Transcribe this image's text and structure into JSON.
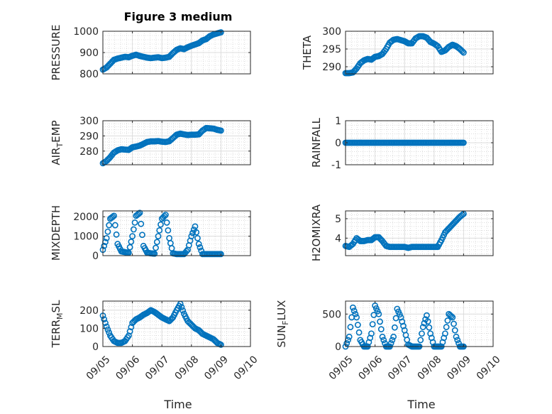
{
  "figure": {
    "title": "Figure 3 medium",
    "xlabel": "Time"
  },
  "chart_data": [
    {
      "type": "scatter",
      "ylabel": "PRESSURE",
      "ylim": [
        800,
        1000
      ],
      "yticks": [
        800,
        900,
        1000
      ],
      "yticklabels": [
        "800",
        "900",
        "1000"
      ],
      "xlim": [
        0,
        5
      ],
      "xticks": [
        0,
        1,
        2,
        3,
        4,
        5
      ],
      "xticklabels": [
        "09/05",
        "09/06",
        "09/07",
        "09/08",
        "09/09",
        "09/10"
      ],
      "show_xticklabels": false,
      "grid": true,
      "color": "#0072BD",
      "x": [
        0.0,
        0.125,
        0.25,
        0.375,
        0.5,
        0.625,
        0.75,
        0.875,
        1.0,
        1.125,
        1.25,
        1.375,
        1.5,
        1.625,
        1.75,
        1.875,
        2.0,
        2.125,
        2.25,
        2.375,
        2.5,
        2.625,
        2.75,
        2.875,
        3.0,
        3.125,
        3.25,
        3.375,
        3.5,
        3.625,
        3.75,
        3.875,
        4.0
      ],
      "y": [
        820,
        830,
        848,
        866,
        872,
        876,
        880,
        878,
        885,
        890,
        884,
        880,
        876,
        874,
        876,
        878,
        874,
        876,
        880,
        898,
        913,
        920,
        916,
        925,
        932,
        938,
        944,
        957,
        963,
        977,
        985,
        990,
        995
      ]
    },
    {
      "type": "scatter",
      "ylabel": "THETA",
      "ylim": [
        288,
        300
      ],
      "yticks": [
        290,
        295,
        300
      ],
      "yticklabels": [
        "290",
        "295",
        "300"
      ],
      "xlim": [
        0,
        5
      ],
      "xticks": [
        0,
        1,
        2,
        3,
        4,
        5
      ],
      "xticklabels": [
        "09/05",
        "09/06",
        "09/07",
        "09/08",
        "09/09",
        "09/10"
      ],
      "show_xticklabels": false,
      "grid": true,
      "color": "#0072BD",
      "x": [
        0.0,
        0.125,
        0.25,
        0.375,
        0.5,
        0.625,
        0.75,
        0.875,
        1.0,
        1.125,
        1.25,
        1.375,
        1.5,
        1.625,
        1.75,
        1.875,
        2.0,
        2.125,
        2.25,
        2.375,
        2.5,
        2.625,
        2.75,
        2.875,
        3.0,
        3.125,
        3.25,
        3.375,
        3.5,
        3.625,
        3.75,
        3.875,
        4.0
      ],
      "y": [
        288.2,
        288.2,
        288.4,
        289.5,
        291.0,
        291.8,
        292.2,
        292.0,
        292.8,
        293.0,
        293.6,
        295.0,
        296.8,
        297.6,
        297.8,
        297.5,
        297.2,
        296.6,
        296.6,
        298.0,
        298.6,
        298.6,
        298.2,
        297.0,
        296.5,
        295.8,
        294.2,
        294.6,
        295.6,
        296.2,
        295.8,
        295.0,
        294.0
      ]
    },
    {
      "type": "scatter",
      "ylabel": "AIR_TEMP",
      "ylim": [
        271,
        300
      ],
      "yticks": [
        280,
        290,
        300
      ],
      "yticklabels": [
        "280",
        "290",
        "300"
      ],
      "xlim": [
        0,
        5
      ],
      "xticks": [
        0,
        1,
        2,
        3,
        4,
        5
      ],
      "xticklabels": [
        "09/05",
        "09/06",
        "09/07",
        "09/08",
        "09/09",
        "09/10"
      ],
      "show_xticklabels": false,
      "grid": true,
      "color": "#0072BD",
      "x": [
        0.0,
        0.125,
        0.25,
        0.375,
        0.5,
        0.625,
        0.75,
        0.875,
        1.0,
        1.125,
        1.25,
        1.375,
        1.5,
        1.625,
        1.75,
        1.875,
        2.0,
        2.125,
        2.25,
        2.375,
        2.5,
        2.625,
        2.75,
        2.875,
        3.0,
        3.125,
        3.25,
        3.375,
        3.5,
        3.625,
        3.75,
        3.875,
        4.0
      ],
      "y": [
        272.0,
        273.5,
        276.0,
        279.0,
        280.5,
        281.2,
        281.0,
        280.8,
        282.5,
        283.0,
        283.6,
        284.8,
        286.0,
        286.4,
        286.4,
        286.6,
        286.2,
        286.0,
        286.5,
        288.6,
        290.8,
        291.5,
        291.0,
        290.6,
        290.8,
        290.8,
        291.0,
        293.5,
        295.2,
        295.0,
        294.8,
        294.0,
        293.5
      ]
    },
    {
      "type": "scatter",
      "ylabel": "RAINFALL",
      "ylim": [
        -1,
        1
      ],
      "yticks": [
        -1,
        0,
        1
      ],
      "yticklabels": [
        "-1",
        "0",
        "1"
      ],
      "xlim": [
        0,
        5
      ],
      "xticks": [
        0,
        1,
        2,
        3,
        4,
        5
      ],
      "xticklabels": [
        "09/05",
        "09/06",
        "09/07",
        "09/08",
        "09/09",
        "09/10"
      ],
      "show_xticklabels": false,
      "grid": true,
      "color": "#0072BD",
      "x": [
        0.0,
        0.125,
        0.25,
        0.375,
        0.5,
        0.625,
        0.75,
        0.875,
        1.0,
        1.125,
        1.25,
        1.375,
        1.5,
        1.625,
        1.75,
        1.875,
        2.0,
        2.125,
        2.25,
        2.375,
        2.5,
        2.625,
        2.75,
        2.875,
        3.0,
        3.125,
        3.25,
        3.375,
        3.5,
        3.625,
        3.75,
        3.875,
        4.0
      ],
      "y": [
        0,
        0,
        0,
        0,
        0,
        0,
        0,
        0,
        0,
        0,
        0,
        0,
        0,
        0,
        0,
        0,
        0,
        0,
        0,
        0,
        0,
        0,
        0,
        0,
        0,
        0,
        0,
        0,
        0,
        0,
        0,
        0,
        0
      ]
    },
    {
      "type": "scatter",
      "ylabel": "MIXDEPTH",
      "ylim": [
        0,
        2300
      ],
      "yticks": [
        0,
        1000,
        2000
      ],
      "yticklabels": [
        "0",
        "1000",
        "2000"
      ],
      "xlim": [
        0,
        5
      ],
      "xticks": [
        0,
        1,
        2,
        3,
        4,
        5
      ],
      "xticklabels": [
        "09/05",
        "09/06",
        "09/07",
        "09/08",
        "09/09",
        "09/10"
      ],
      "show_xticklabels": false,
      "grid": true,
      "color": "#0072BD",
      "x": [
        0.0,
        0.125,
        0.25,
        0.375,
        0.5,
        0.625,
        0.75,
        0.875,
        1.0,
        1.125,
        1.25,
        1.375,
        1.5,
        1.625,
        1.75,
        1.875,
        2.0,
        2.125,
        2.25,
        2.375,
        2.5,
        2.625,
        2.75,
        2.875,
        3.0,
        3.125,
        3.25,
        3.375,
        3.5,
        3.625,
        3.75,
        3.875,
        4.0
      ],
      "y": [
        300,
        900,
        1900,
        2050,
        600,
        220,
        180,
        150,
        1000,
        2050,
        2200,
        500,
        150,
        120,
        100,
        1000,
        1900,
        2100,
        900,
        120,
        80,
        80,
        80,
        300,
        1000,
        1500,
        600,
        80,
        80,
        80,
        80,
        80,
        80
      ]
    },
    {
      "type": "scatter",
      "ylabel": "H2OMIXRA",
      "ylim": [
        3.1,
        5.4
      ],
      "yticks": [
        4,
        5
      ],
      "yticklabels": [
        "4",
        "5"
      ],
      "xlim": [
        0,
        5
      ],
      "xticks": [
        0,
        1,
        2,
        3,
        4,
        5
      ],
      "xticklabels": [
        "09/05",
        "09/06",
        "09/07",
        "09/08",
        "09/09",
        "09/10"
      ],
      "show_xticklabels": false,
      "grid": true,
      "color": "#0072BD",
      "x": [
        0.0,
        0.125,
        0.25,
        0.375,
        0.5,
        0.625,
        0.75,
        0.875,
        1.0,
        1.125,
        1.25,
        1.375,
        1.5,
        1.625,
        1.75,
        1.875,
        2.0,
        2.125,
        2.25,
        2.375,
        2.5,
        2.625,
        2.75,
        2.875,
        3.0,
        3.125,
        3.25,
        3.375,
        3.5,
        3.625,
        3.75,
        3.875,
        4.0
      ],
      "y": [
        3.6,
        3.55,
        3.7,
        4.0,
        3.85,
        3.85,
        3.9,
        3.9,
        4.05,
        4.05,
        3.85,
        3.6,
        3.55,
        3.55,
        3.55,
        3.55,
        3.55,
        3.5,
        3.55,
        3.55,
        3.55,
        3.55,
        3.55,
        3.55,
        3.55,
        3.55,
        3.9,
        4.3,
        4.5,
        4.7,
        4.9,
        5.1,
        5.25
      ]
    },
    {
      "type": "scatter",
      "ylabel": "TERR_MSL",
      "ylim": [
        0,
        250
      ],
      "yticks": [
        0,
        100,
        200
      ],
      "yticklabels": [
        "0",
        "100",
        "200"
      ],
      "xlim": [
        0,
        5
      ],
      "xticks": [
        0,
        1,
        2,
        3,
        4,
        5
      ],
      "xticklabels": [
        "09/05",
        "09/06",
        "09/07",
        "09/08",
        "09/09",
        "09/10"
      ],
      "show_xticklabels": false,
      "grid": true,
      "color": "#0072BD",
      "x": [
        0.0,
        0.125,
        0.25,
        0.375,
        0.5,
        0.625,
        0.75,
        0.875,
        1.0,
        1.125,
        1.25,
        1.375,
        1.5,
        1.625,
        1.75,
        1.875,
        2.0,
        2.125,
        2.25,
        2.375,
        2.5,
        2.625,
        2.75,
        2.875,
        3.0,
        3.125,
        3.25,
        3.375,
        3.5,
        3.625,
        3.75,
        3.875,
        4.0
      ],
      "y": [
        170,
        110,
        60,
        30,
        20,
        20,
        30,
        60,
        130,
        150,
        160,
        175,
        185,
        200,
        190,
        175,
        160,
        150,
        140,
        160,
        200,
        235,
        180,
        140,
        120,
        100,
        90,
        70,
        60,
        50,
        40,
        20,
        10
      ]
    },
    {
      "type": "scatter",
      "ylabel": "SUN_FLUX",
      "ylim": [
        0,
        700
      ],
      "yticks": [
        0,
        500
      ],
      "yticklabels": [
        "0",
        "500"
      ],
      "xlim": [
        0,
        5
      ],
      "xticks": [
        0,
        1,
        2,
        3,
        4,
        5
      ],
      "xticklabels": [
        "09/05",
        "09/06",
        "09/07",
        "09/08",
        "09/09",
        "09/10"
      ],
      "show_xticklabels": true,
      "grid": true,
      "color": "#0072BD",
      "x": [
        0.0,
        0.125,
        0.25,
        0.375,
        0.5,
        0.625,
        0.75,
        0.875,
        1.0,
        1.125,
        1.25,
        1.375,
        1.5,
        1.625,
        1.75,
        1.875,
        2.0,
        2.125,
        2.25,
        2.375,
        2.5,
        2.625,
        2.75,
        2.875,
        3.0,
        3.125,
        3.25,
        3.375,
        3.5,
        3.625,
        3.75,
        3.875,
        4.0
      ],
      "y": [
        0,
        150,
        600,
        450,
        100,
        0,
        0,
        200,
        630,
        500,
        150,
        0,
        0,
        150,
        580,
        450,
        250,
        30,
        0,
        0,
        0,
        300,
        480,
        200,
        0,
        0,
        0,
        200,
        500,
        450,
        150,
        0,
        0
      ]
    }
  ]
}
